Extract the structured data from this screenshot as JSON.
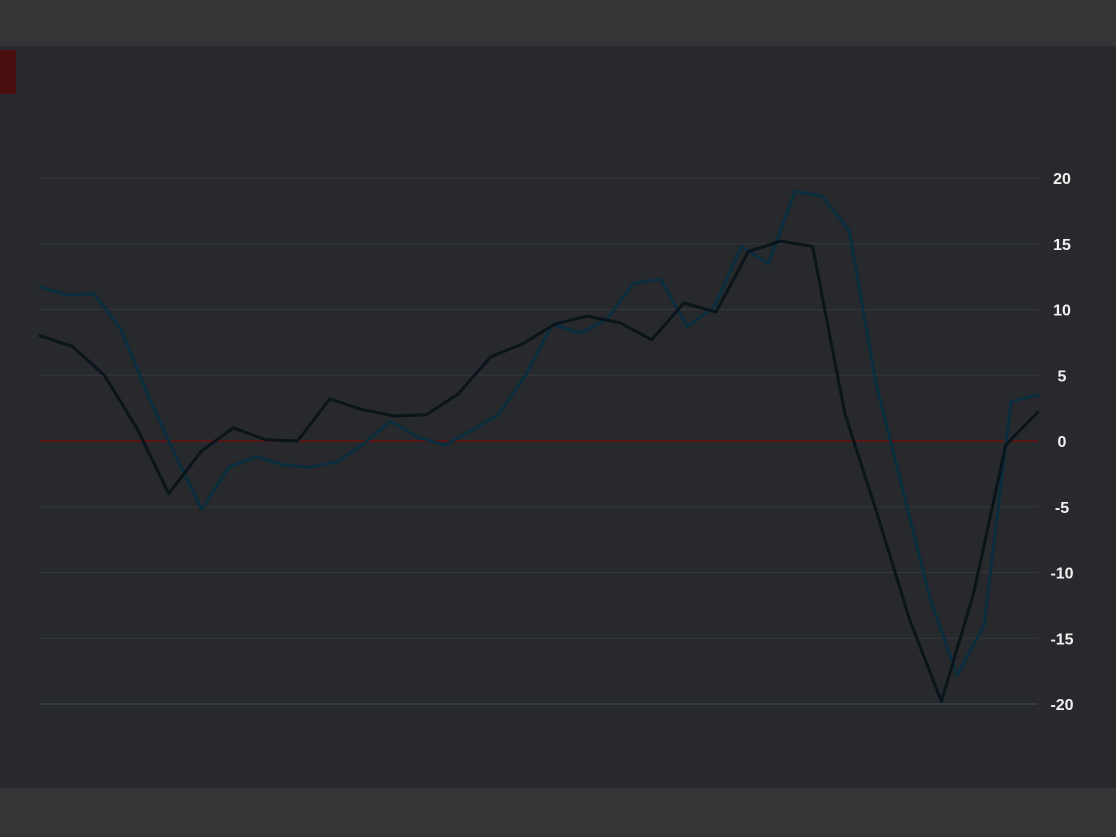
{
  "chart_data": {
    "type": "line",
    "title": "",
    "subtitle": "",
    "source": "",
    "ylim": [
      -20,
      20
    ],
    "y_ticks": [
      20,
      15,
      10,
      5,
      0,
      -5,
      -10,
      -15,
      -20
    ],
    "zero_line": true,
    "grid": true,
    "legend": "none",
    "x_ticks": [],
    "annotations": [],
    "series": [
      {
        "color": "#0b2e3f",
        "values": [
          11.7,
          11.1,
          11.2,
          8.5,
          3.5,
          -1.0,
          -5.2,
          -2.0,
          -1.2,
          -1.8,
          -2.0,
          -1.6,
          -0.2,
          1.5,
          0.3,
          -0.3,
          0.8,
          2.0,
          5.0,
          8.9,
          8.2,
          9.2,
          12.0,
          12.3,
          8.7,
          10.2,
          14.8,
          13.5,
          19.0,
          18.6,
          16.0,
          4.3,
          -3.8,
          -12.0,
          -17.8,
          -14.0,
          3.0,
          3.5
        ]
      },
      {
        "color": "#0a141b",
        "values": [
          8.0,
          7.2,
          5.0,
          1.0,
          -4.0,
          -0.8,
          1.0,
          0.1,
          0.0,
          3.2,
          2.4,
          1.9,
          2.0,
          3.6,
          6.4,
          7.4,
          8.9,
          9.5,
          9.0,
          7.7,
          10.5,
          9.8,
          14.4,
          15.2,
          14.8,
          2.1,
          -5.5,
          -13.5,
          -19.8,
          -11.6,
          -0.3,
          2.2
        ]
      }
    ]
  }
}
